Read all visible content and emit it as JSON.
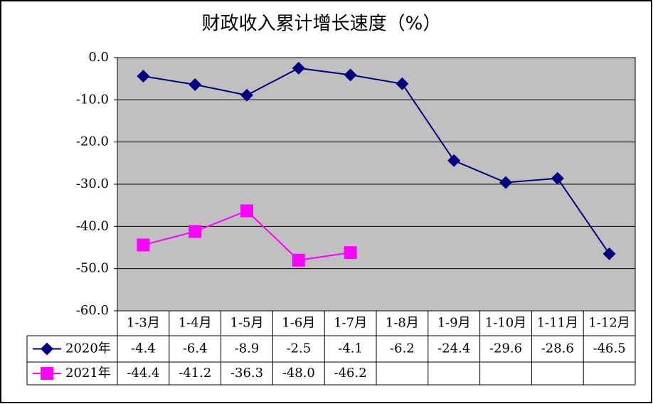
{
  "chart_data": {
    "type": "line",
    "title": "财政收入累计增长速度（%）",
    "categories": [
      "1-3月",
      "1-4月",
      "1-5月",
      "1-6月",
      "1-7月",
      "1-8月",
      "1-9月",
      "1-10月",
      "1-11月",
      "1-12月"
    ],
    "series": [
      {
        "name": "2020年",
        "color": "#000080",
        "marker": "diamond",
        "values": [
          -4.4,
          -6.4,
          -8.9,
          -2.5,
          -4.1,
          -6.2,
          -24.4,
          -29.6,
          -28.6,
          -46.5
        ]
      },
      {
        "name": "2021年",
        "color": "#ff00ff",
        "marker": "square",
        "values": [
          -44.4,
          -41.2,
          -36.3,
          -48.0,
          -46.2,
          null,
          null,
          null,
          null,
          null
        ],
        "value_labels": [
          "-44.4",
          "-41.2",
          "-36.3",
          "-48.0",
          "-46.2",
          null,
          null,
          null,
          null,
          null
        ]
      }
    ],
    "ylim": [
      -60,
      0
    ],
    "yticks": [
      {
        "value": 0,
        "label": "0.0"
      },
      {
        "value": -10,
        "label": "-10.0"
      },
      {
        "value": -20,
        "label": "-20.0"
      },
      {
        "value": -30,
        "label": "-30.0"
      },
      {
        "value": -40,
        "label": "-40.0"
      },
      {
        "value": -50,
        "label": "-50.0"
      },
      {
        "value": -60,
        "label": "-60.0"
      }
    ],
    "grid": true,
    "plot_background": "#c0c0c0",
    "data_table": true
  }
}
